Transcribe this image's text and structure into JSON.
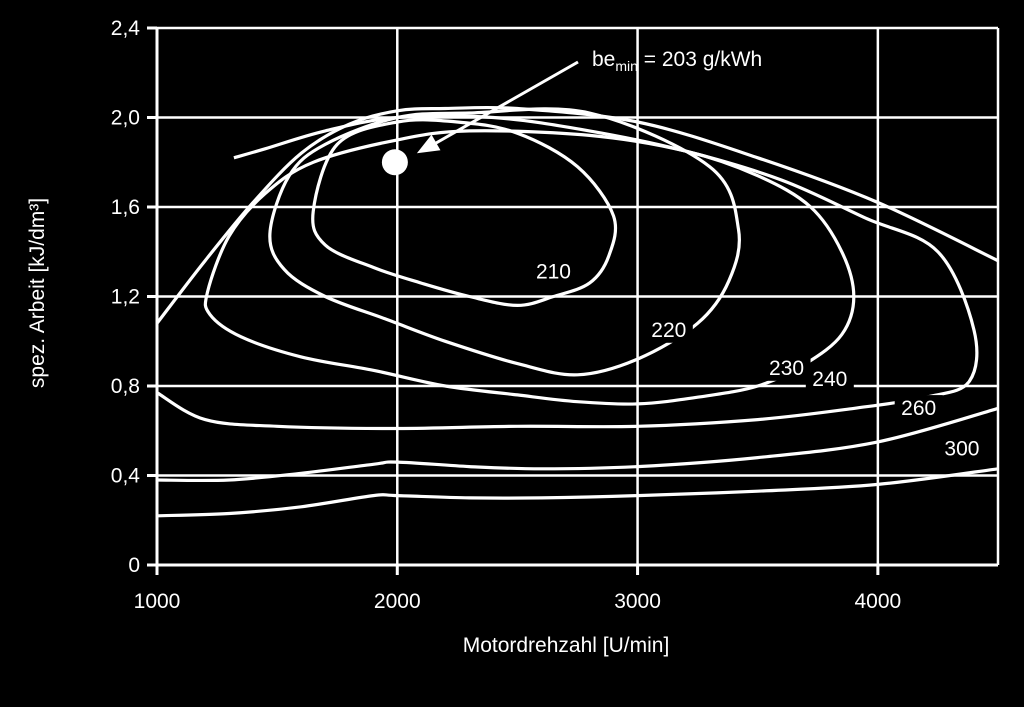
{
  "chart_data": {
    "type": "line",
    "xlabel": "Motordrehzahl [U/min]",
    "ylabel": "spez. Arbeit [kJ/dm³]",
    "xlim": [
      1000,
      4500
    ],
    "ylim": [
      0,
      2.4
    ],
    "x_ticks": [
      1000,
      2000,
      3000,
      4000
    ],
    "y_ticks": [
      0,
      0.4,
      0.8,
      1.2,
      1.6,
      2.0,
      2.4
    ],
    "x_tick_labels": [
      "1000",
      "2000",
      "3000",
      "4000"
    ],
    "y_tick_labels": [
      "0",
      "0,4",
      "0,8",
      "1,2",
      "1,6",
      "2,0",
      "2,4"
    ],
    "grid": true,
    "boundary": {
      "x": [
        1000,
        1200,
        1400,
        1600,
        1800,
        2000,
        2200,
        2500,
        3000,
        3500,
        4000,
        4500
      ],
      "y": [
        1.08,
        1.36,
        1.62,
        1.84,
        1.97,
        2.03,
        2.04,
        2.04,
        1.98,
        1.82,
        1.62,
        1.36
      ]
    },
    "optimum": {
      "x": 1990,
      "y": 1.8,
      "label_parts": [
        "be",
        "min",
        " = 203 g/kWh"
      ]
    },
    "series": [
      {
        "name": "210",
        "closed": true,
        "x": [
          1650,
          1750,
          2000,
          2250,
          2500,
          2750,
          2900,
          2880,
          2800,
          2650,
          2500,
          2300,
          2100,
          1900,
          1700
        ],
        "y": [
          1.58,
          1.88,
          1.98,
          1.98,
          1.93,
          1.78,
          1.56,
          1.38,
          1.26,
          1.2,
          1.16,
          1.2,
          1.26,
          1.33,
          1.43
        ],
        "label_at": [
          2650,
          1.28
        ]
      },
      {
        "name": "220",
        "closed": true,
        "x": [
          1470,
          1550,
          1700,
          2000,
          2300,
          2800,
          3300,
          3420,
          3380,
          3250,
          3000,
          2750,
          2500,
          2200,
          1950,
          1700,
          1530
        ],
        "y": [
          1.48,
          1.74,
          1.88,
          2.0,
          2.02,
          2.02,
          1.78,
          1.5,
          1.27,
          1.08,
          0.92,
          0.85,
          0.9,
          1.0,
          1.1,
          1.2,
          1.32
        ],
        "label_at": [
          3130,
          1.02
        ]
      },
      {
        "name": "230",
        "closed": true,
        "x": [
          1210,
          1300,
          1450,
          1650,
          2000,
          2300,
          2800,
          3200,
          3500,
          3720,
          3850,
          3900,
          3850,
          3700,
          3500,
          3250,
          3000,
          2750,
          2500,
          2200,
          1900,
          1600,
          1350,
          1220
        ],
        "y": [
          1.22,
          1.47,
          1.66,
          1.8,
          1.9,
          1.94,
          1.92,
          1.85,
          1.74,
          1.6,
          1.4,
          1.2,
          1.03,
          0.9,
          0.8,
          0.75,
          0.72,
          0.73,
          0.76,
          0.8,
          0.87,
          0.93,
          1.02,
          1.12
        ],
        "label_at": [
          3620,
          0.85
        ]
      },
      {
        "name": "240",
        "closed": false,
        "x": [
          1320,
          1450,
          1700,
          2000,
          2400,
          2800,
          3200,
          3600,
          3950,
          4250,
          4400,
          4380,
          4200,
          3900,
          3500,
          3000,
          2500,
          2000,
          1500,
          1200,
          1000
        ],
        "y": [
          1.82,
          1.86,
          1.94,
          2.0,
          2.0,
          1.94,
          1.85,
          1.72,
          1.55,
          1.4,
          1.05,
          0.82,
          0.75,
          0.7,
          0.65,
          0.62,
          0.62,
          0.61,
          0.62,
          0.65,
          0.77
        ],
        "label_at": [
          3800,
          0.8
        ]
      },
      {
        "name": "260",
        "closed": false,
        "x": [
          1000,
          1300,
          1600,
          1900,
          2000,
          2300,
          2600,
          3000,
          3500,
          4000,
          4500
        ],
        "y": [
          0.38,
          0.38,
          0.41,
          0.45,
          0.46,
          0.44,
          0.43,
          0.44,
          0.48,
          0.55,
          0.7
        ],
        "label_at": [
          4170,
          0.67
        ]
      },
      {
        "name": "300",
        "closed": false,
        "x": [
          1000,
          1300,
          1600,
          1900,
          2000,
          2300,
          2600,
          3000,
          3500,
          4000,
          4500
        ],
        "y": [
          0.22,
          0.23,
          0.26,
          0.31,
          0.31,
          0.3,
          0.3,
          0.31,
          0.33,
          0.36,
          0.43
        ],
        "label_at": [
          4350,
          0.49
        ]
      }
    ]
  }
}
